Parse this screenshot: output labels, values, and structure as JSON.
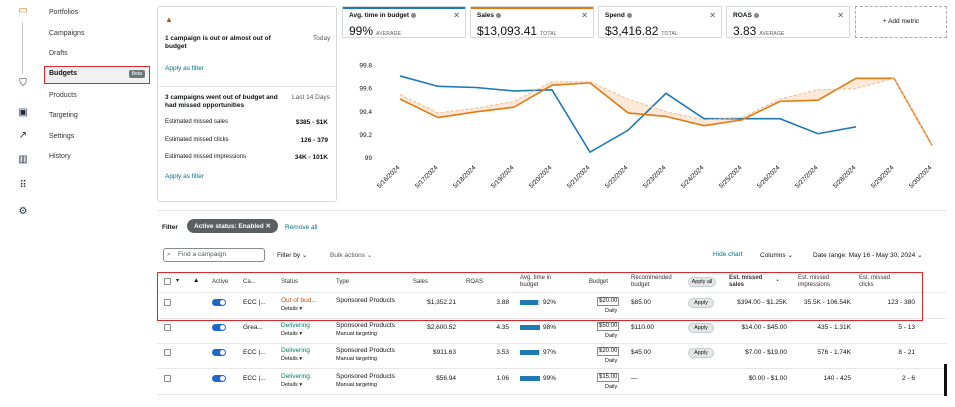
{
  "rail": {
    "icons": [
      "campaign-manager-icon",
      "shield-icon",
      "media-icon",
      "trend-icon",
      "bar-chart-icon",
      "apps-grid-icon",
      "settings-gear-icon"
    ]
  },
  "nav": {
    "items": [
      {
        "label": "Portfolios"
      },
      {
        "label": "Campaigns"
      },
      {
        "label": "Drafts"
      },
      {
        "label": "Budgets",
        "badge": "Beta",
        "active": true
      },
      {
        "label": "Products"
      },
      {
        "label": "Targeting"
      },
      {
        "label": "Settings"
      },
      {
        "label": "History"
      }
    ]
  },
  "recommendations": {
    "card1": {
      "title": "1 campaign is out or almost out of budget",
      "when": "Today",
      "action": "Apply as filter"
    },
    "card2": {
      "title": "3 campaigns went out of budget and had missed opportunities",
      "when": "Last 14 Days",
      "rows": [
        {
          "label": "Estimated missed sales",
          "value": "$385 - $1K"
        },
        {
          "label": "Estimated missed clicks",
          "value": "126 - 379"
        },
        {
          "label": "Estimated missed impressions",
          "value": "34K - 101K"
        }
      ],
      "action": "Apply as filter"
    }
  },
  "metrics": [
    {
      "title": "Avg. time in budget",
      "value": "99%",
      "sub": "AVERAGE",
      "color": "#1f79b3"
    },
    {
      "title": "Sales",
      "value": "$13,093.41",
      "sub": "TOTAL",
      "color": "#e47911"
    },
    {
      "title": "Spend",
      "value": "$3,416.82",
      "sub": "TOTAL",
      "color": ""
    },
    {
      "title": "ROAS",
      "value": "3.83",
      "sub": "AVERAGE",
      "color": ""
    }
  ],
  "add_metric": "+ Add metric",
  "chart_data": {
    "type": "line",
    "x": [
      "5/16/2024",
      "5/17/2024",
      "5/18/2024",
      "5/19/2024",
      "5/20/2024",
      "5/21/2024",
      "5/22/2024",
      "5/23/2024",
      "5/24/2024",
      "5/25/2024",
      "5/26/2024",
      "5/27/2024",
      "5/28/2024",
      "5/29/2024",
      "5/30/2024"
    ],
    "yticks": [
      "99.8",
      "99.6",
      "99.4",
      "99.2",
      "99"
    ],
    "ylim": [
      99,
      99.9
    ],
    "series": [
      {
        "values": [
          99.71,
          99.62,
          99.61,
          99.58,
          99.59,
          99.05,
          99.24,
          99.56,
          99.34,
          99.34,
          99.34,
          99.21,
          99.27,
          null,
          null
        ],
        "color": "#1f79b3"
      },
      {
        "values": [
          99.51,
          99.35,
          99.4,
          99.44,
          99.63,
          99.65,
          99.39,
          99.36,
          99.28,
          99.33,
          99.49,
          99.5,
          99.69,
          99.69,
          99.11
        ],
        "color": "#e47911"
      },
      {
        "values": [
          99.55,
          99.39,
          99.43,
          99.49,
          99.66,
          99.66,
          99.51,
          99.4,
          99.33,
          99.35,
          99.51,
          99.59,
          99.6,
          99.69,
          99.11
        ],
        "color": "#f0b98a"
      }
    ]
  },
  "filter": {
    "label": "Filter",
    "chip": "Active status: Enabled",
    "remove_all": "Remove all",
    "search_placeholder": "Find a campaign",
    "filter_by": "Filter by",
    "bulk_actions": "Bulk actions",
    "hide_chart": "Hide chart",
    "columns": "Columns",
    "date_range": "Date range: May 16 - May 30, 2024"
  },
  "table": {
    "headers": {
      "active": "Active",
      "campaign": "Ca...",
      "status": "Status",
      "type": "Type",
      "sales": "Sales",
      "roas": "ROAS",
      "avg_time": "Avg. time in budget",
      "budget": "Budget",
      "recommended": "Recommended budget",
      "apply_all": "Apply all",
      "est_sales": "Est. missed sales",
      "est_impr": "Est. missed impressions",
      "est_clicks": "Est. missed clicks"
    },
    "rows": [
      {
        "campaign": "ECC |...",
        "status": "Out of bud...",
        "status_color": "#c45500",
        "details": "Details",
        "type": "Sponsored Products",
        "targeting": "",
        "sales": "$1,352.21",
        "roas": "3.88",
        "pct": "92%",
        "pct_val": 0.92,
        "budget": "$20.00",
        "period": "Daily",
        "rec": "$85.00",
        "apply": "Apply",
        "est_sales": "$394.00 - $1.25K",
        "est_impr": "35.5K - 106.54K",
        "est_clicks": "123 - 380"
      },
      {
        "campaign": "Grea...",
        "status": "Delivering",
        "status_color": "#067d62",
        "details": "Details",
        "type": "Sponsored Products",
        "targeting": "Manual targeting",
        "sales": "$2,600.52",
        "roas": "4.35",
        "pct": "98%",
        "pct_val": 0.98,
        "budget": "$50.00",
        "period": "Daily",
        "rec": "$110.00",
        "apply": "Apply",
        "est_sales": "$14.00 - $45.00",
        "est_impr": "435 - 1.31K",
        "est_clicks": "5 - 13"
      },
      {
        "campaign": "ECC |...",
        "status": "Delivering",
        "status_color": "#067d62",
        "details": "Details",
        "type": "Sponsored Products",
        "targeting": "Manual targeting",
        "sales": "$911.63",
        "roas": "3.53",
        "pct": "97%",
        "pct_val": 0.97,
        "budget": "$20.00",
        "period": "Daily",
        "rec": "$45.00",
        "apply": "Apply",
        "est_sales": "$7.00 - $19.00",
        "est_impr": "576 - 1.74K",
        "est_clicks": "8 - 21"
      },
      {
        "campaign": "ECC |...",
        "status": "Delivering",
        "status_color": "#067d62",
        "details": "Details",
        "type": "Sponsored Products",
        "targeting": "Manual targeting",
        "sales": "$56.94",
        "roas": "1.06",
        "pct": "99%",
        "pct_val": 0.99,
        "budget": "$15.00",
        "period": "Daily",
        "rec": "—",
        "apply": "",
        "est_sales": "$0.00 - $1.00",
        "est_impr": "140 - 425",
        "est_clicks": "2 - 6"
      }
    ]
  }
}
